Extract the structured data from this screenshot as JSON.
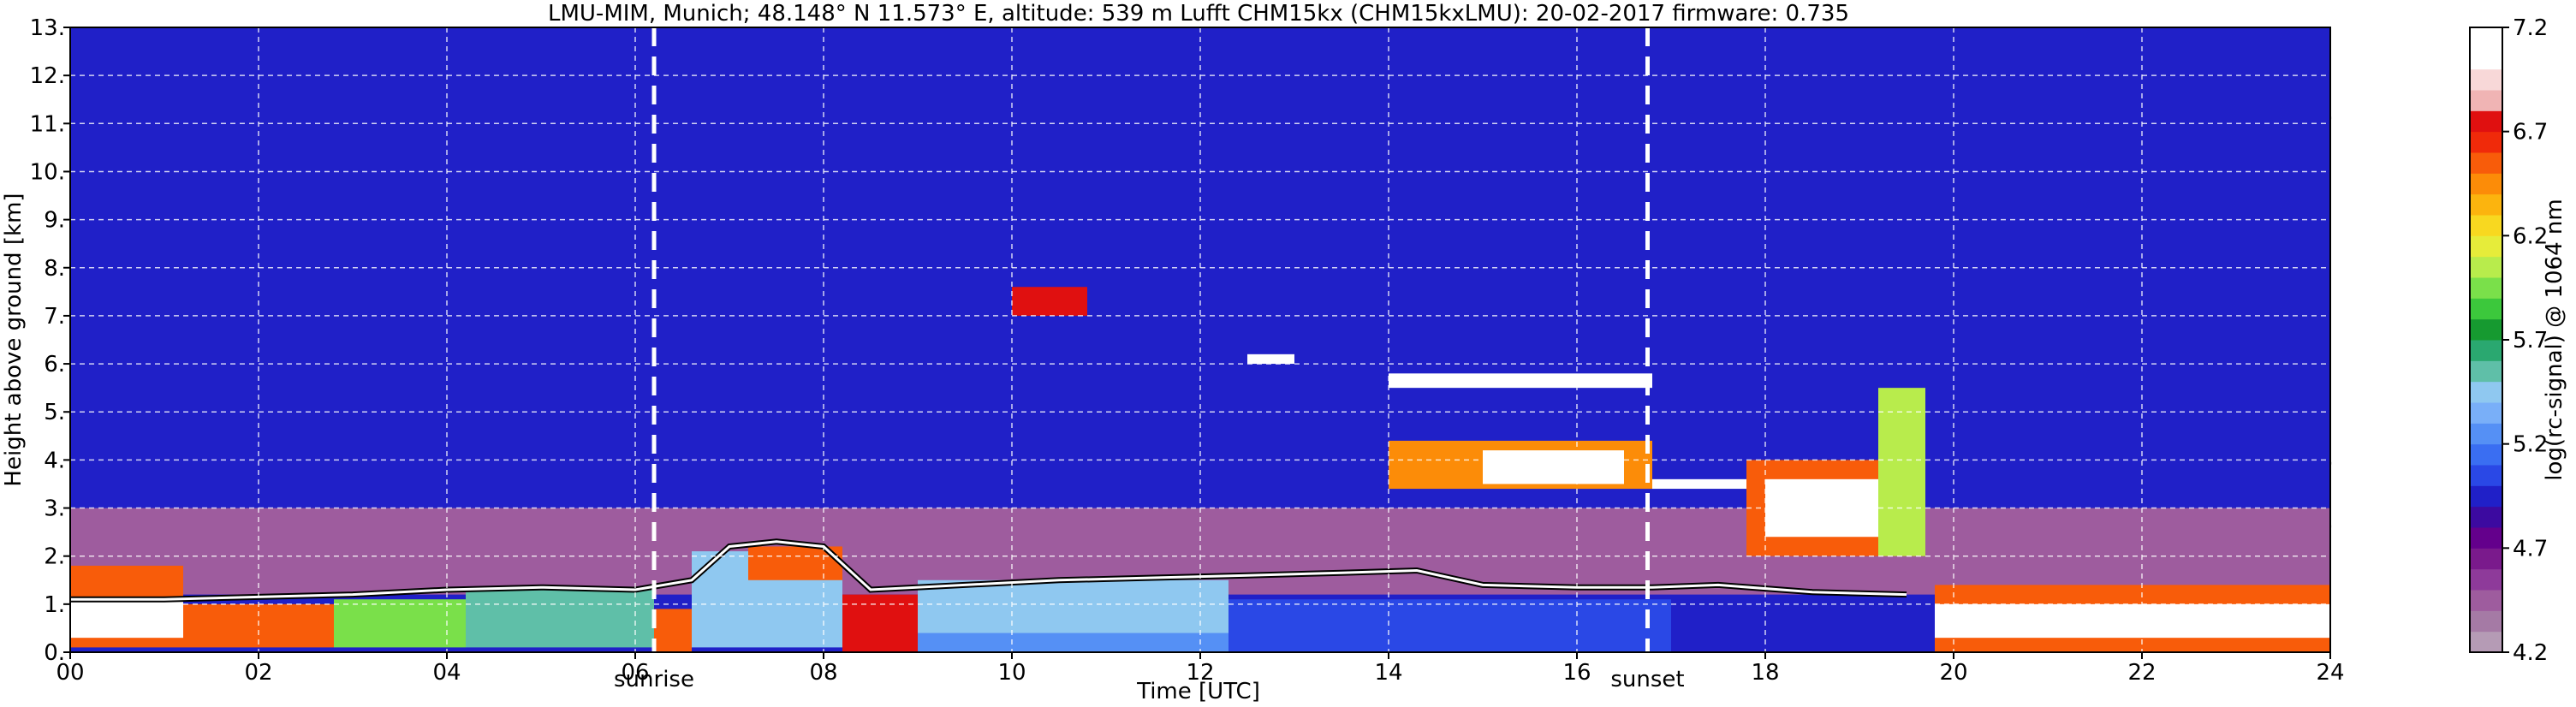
{
  "chart_data": {
    "type": "heatmap",
    "title": "LMU-MIM, Munich; 48.148° N 11.573° E, altitude: 539 m    Lufft CHM15kx (CHM15kxLMU): 20-02-2017    firmware: 0.735",
    "xlabel": "Time [UTC]",
    "ylabel": "Height above ground [km]",
    "xlim": [
      0,
      24
    ],
    "ylim": [
      0,
      13
    ],
    "x_ticks": [
      "00",
      "02",
      "04",
      "06",
      "08",
      "10",
      "12",
      "14",
      "16",
      "18",
      "20",
      "22",
      "24"
    ],
    "y_ticks": [
      "0.",
      "1.",
      "2.",
      "3.",
      "4.",
      "5.",
      "6.",
      "7.",
      "8.",
      "9.",
      "10.",
      "11.",
      "12.",
      "13."
    ],
    "grid": true,
    "markers": [
      {
        "label": "sunrise",
        "x": 6.2
      },
      {
        "label": "sunset",
        "x": 16.75
      }
    ],
    "colorbar": {
      "label": "log(rc-signal) @ 1064 nm",
      "range": [
        4.2,
        7.2
      ],
      "ticks": [
        "4.2",
        "4.7",
        "5.2",
        "5.7",
        "6.2",
        "6.7",
        "7.2"
      ],
      "colors": [
        "#b59bb5",
        "#a57aa5",
        "#9e5c9e",
        "#8e3a9a",
        "#7a1a8c",
        "#64008c",
        "#3c0aa0",
        "#2020c8",
        "#2a48e6",
        "#3a6ef2",
        "#5590f5",
        "#79aff8",
        "#8fc8f0",
        "#5fbfa8",
        "#2aa870",
        "#169a30",
        "#3cc83c",
        "#7ae04a",
        "#b8ec4c",
        "#e6ec3a",
        "#f8d820",
        "#fcb40e",
        "#fc8c08",
        "#f85c0a",
        "#f02a0a",
        "#e01010",
        "#f0b4b4",
        "#f8d8d8",
        "#ffffff",
        "#ffffff"
      ]
    },
    "layers": [
      {
        "t0": 0,
        "t1": 24,
        "h0": 0,
        "h1": 13,
        "v": 4.9
      },
      {
        "t0": 0,
        "t1": 24,
        "h0": 1.2,
        "h1": 3.0,
        "v": 4.5
      },
      {
        "t0": 0,
        "t1": 1.2,
        "h0": 0.1,
        "h1": 1.8,
        "v": 6.5
      },
      {
        "t0": 0,
        "t1": 1.2,
        "h0": 0.3,
        "h1": 1.1,
        "v": 7.1
      },
      {
        "t0": 1.2,
        "t1": 2.8,
        "h0": 0.1,
        "h1": 1.0,
        "v": 6.6
      },
      {
        "t0": 2.8,
        "t1": 4.2,
        "h0": 0.1,
        "h1": 1.1,
        "v": 5.9
      },
      {
        "t0": 4.2,
        "t1": 6.2,
        "h0": 0.1,
        "h1": 1.3,
        "v": 5.6
      },
      {
        "t0": 6.2,
        "t1": 6.6,
        "h0": 0.0,
        "h1": 0.9,
        "v": 6.6
      },
      {
        "t0": 6.6,
        "t1": 8.2,
        "h0": 0.1,
        "h1": 2.1,
        "v": 5.5
      },
      {
        "t0": 7.2,
        "t1": 8.2,
        "h0": 1.5,
        "h1": 2.2,
        "v": 6.6
      },
      {
        "t0": 8.2,
        "t1": 9.0,
        "h0": 0.0,
        "h1": 1.2,
        "v": 6.7
      },
      {
        "t0": 9.0,
        "t1": 12.3,
        "h0": 0.0,
        "h1": 1.1,
        "v": 5.3
      },
      {
        "t0": 9.0,
        "t1": 12.3,
        "h0": 0.4,
        "h1": 1.5,
        "v": 5.45
      },
      {
        "t0": 12.3,
        "t1": 17.0,
        "h0": 0.0,
        "h1": 1.1,
        "v": 5.1
      },
      {
        "t0": 17.0,
        "t1": 20.0,
        "h0": 0.0,
        "h1": 1.0,
        "v": 5.0
      },
      {
        "t0": 19.8,
        "t1": 24.0,
        "h0": 0.0,
        "h1": 1.4,
        "v": 6.5
      },
      {
        "t0": 19.8,
        "t1": 24.0,
        "h0": 0.3,
        "h1": 1.0,
        "v": 7.1
      },
      {
        "t0": 14.0,
        "t1": 16.8,
        "h0": 5.5,
        "h1": 5.8,
        "v": 7.1
      },
      {
        "t0": 14.0,
        "t1": 16.8,
        "h0": 3.4,
        "h1": 4.4,
        "v": 6.4
      },
      {
        "t0": 15.0,
        "t1": 16.5,
        "h0": 3.5,
        "h1": 4.2,
        "v": 7.1
      },
      {
        "t0": 16.8,
        "t1": 17.8,
        "h0": 3.4,
        "h1": 3.6,
        "v": 7.1
      },
      {
        "t0": 17.8,
        "t1": 19.7,
        "h0": 2.0,
        "h1": 4.0,
        "v": 6.5
      },
      {
        "t0": 18.0,
        "t1": 19.2,
        "h0": 2.4,
        "h1": 3.6,
        "v": 7.1
      },
      {
        "t0": 19.2,
        "t1": 19.7,
        "h0": 2.0,
        "h1": 5.5,
        "v": 6.1
      },
      {
        "t0": 10.0,
        "t1": 10.8,
        "h0": 7.0,
        "h1": 7.6,
        "v": 6.7
      },
      {
        "t0": 12.5,
        "t1": 13.0,
        "h0": 6.0,
        "h1": 6.2,
        "v": 7.1
      }
    ],
    "cloud_base_line": [
      [
        0,
        1.1
      ],
      [
        1,
        1.1
      ],
      [
        2,
        1.15
      ],
      [
        3,
        1.2
      ],
      [
        4,
        1.3
      ],
      [
        5,
        1.35
      ],
      [
        6,
        1.3
      ],
      [
        6.6,
        1.5
      ],
      [
        7,
        2.2
      ],
      [
        7.5,
        2.3
      ],
      [
        8,
        2.2
      ],
      [
        8.5,
        1.3
      ],
      [
        9.5,
        1.4
      ],
      [
        10.5,
        1.5
      ],
      [
        11.5,
        1.55
      ],
      [
        12.5,
        1.6
      ],
      [
        13.5,
        1.65
      ],
      [
        14.3,
        1.7
      ],
      [
        15,
        1.4
      ],
      [
        16,
        1.35
      ],
      [
        16.8,
        1.35
      ],
      [
        17.5,
        1.4
      ],
      [
        18.5,
        1.25
      ],
      [
        19.5,
        1.2
      ]
    ]
  }
}
